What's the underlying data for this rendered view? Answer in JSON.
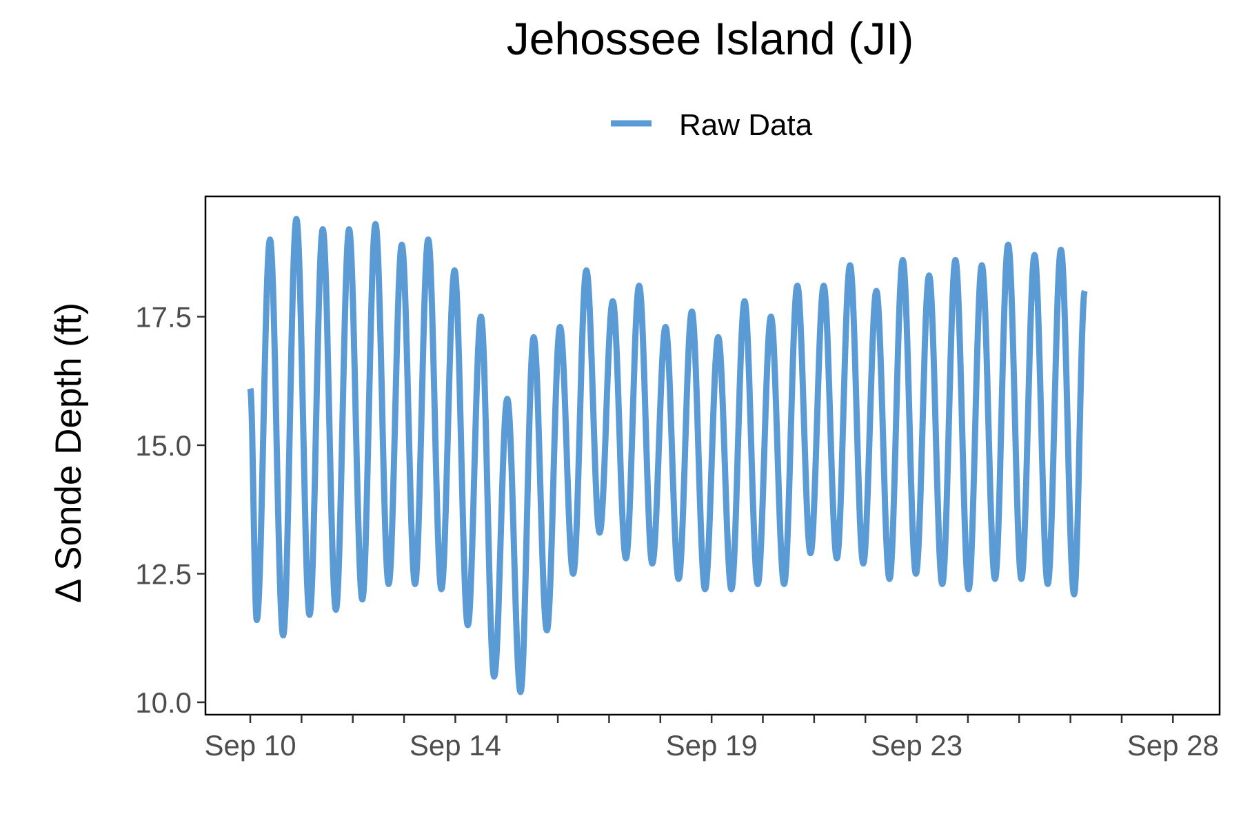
{
  "chart_data": {
    "type": "line",
    "title": "Jehossee Island (JI)",
    "ylabel": "Δ Sonde Depth (ft)",
    "xlabel": "",
    "xlim": [
      0,
      19
    ],
    "ylim": [
      9.8,
      19.9
    ],
    "x_ticks": [
      {
        "x": 0,
        "label": "Sep 10"
      },
      {
        "x": 4,
        "label": "Sep 14"
      },
      {
        "x": 9,
        "label": "Sep 19"
      },
      {
        "x": 13,
        "label": "Sep 23"
      },
      {
        "x": 18,
        "label": "Sep 28"
      }
    ],
    "x_minor_ticks": [
      1,
      2,
      3,
      5,
      6,
      7,
      8,
      10,
      11,
      12,
      14,
      15,
      16,
      17
    ],
    "y_ticks": [
      {
        "y": 10.0,
        "label": "10.0"
      },
      {
        "y": 12.5,
        "label": "12.5"
      },
      {
        "y": 15.0,
        "label": "15.0"
      },
      {
        "y": 17.5,
        "label": "17.5"
      }
    ],
    "legend": {
      "position": "top"
    },
    "grid": false,
    "series": [
      {
        "name": "Raw Data",
        "color": "#5b9bd5",
        "x_unit": "days since Sep 10",
        "x": [
          0.0,
          0.127,
          0.385,
          0.641,
          0.9,
          1.157,
          1.413,
          1.671,
          1.928,
          2.185,
          2.443,
          2.699,
          2.956,
          3.214,
          3.471,
          3.728,
          3.985,
          4.243,
          4.5,
          4.757,
          5.014,
          5.272,
          5.529,
          5.786,
          6.043,
          6.3,
          6.557,
          6.815,
          7.072,
          7.329,
          7.586,
          7.843,
          8.101,
          8.357,
          8.614,
          8.872,
          9.129,
          9.386,
          9.643,
          9.9,
          10.157,
          10.414,
          10.672,
          10.929,
          11.186,
          11.443,
          11.7,
          11.958,
          12.214,
          12.471,
          12.729,
          12.986,
          13.243,
          13.5,
          13.757,
          14.014,
          14.272,
          14.528,
          14.786,
          15.043,
          15.3,
          15.557,
          15.815,
          16.071,
          16.28
        ],
        "y": [
          16.1,
          11.6,
          19.0,
          11.3,
          19.4,
          11.7,
          19.2,
          11.8,
          19.2,
          12.0,
          19.3,
          12.3,
          18.9,
          12.3,
          19.0,
          12.2,
          18.4,
          11.5,
          17.5,
          10.5,
          15.9,
          10.2,
          17.1,
          11.4,
          17.3,
          12.5,
          18.4,
          13.3,
          17.8,
          12.8,
          18.1,
          12.7,
          17.3,
          12.4,
          17.6,
          12.2,
          17.1,
          12.2,
          17.8,
          12.3,
          17.5,
          12.3,
          18.1,
          12.9,
          18.1,
          12.8,
          18.5,
          12.7,
          18.0,
          12.4,
          18.6,
          12.5,
          18.3,
          12.3,
          18.6,
          12.2,
          18.5,
          12.4,
          18.9,
          12.4,
          18.7,
          12.3,
          18.8,
          12.1,
          18.0
        ]
      }
    ]
  }
}
